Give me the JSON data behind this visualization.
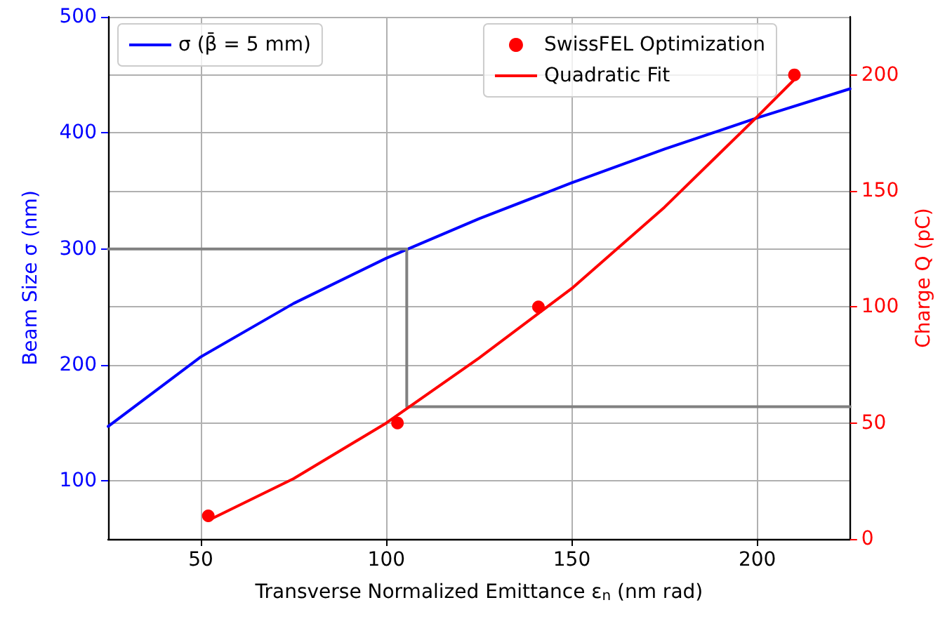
{
  "chart_data": {
    "type": "line",
    "xlabel": "Transverse Normalized Emittance ε$_{n}$ (nm rad)",
    "ylabel": "Beam Size σ (nm)",
    "y2label": "Charge Q (pC)",
    "xlim": [
      25,
      225
    ],
    "xticks": [
      50,
      100,
      150,
      200
    ],
    "ylim": [
      50,
      500
    ],
    "yticks": [
      100,
      200,
      300,
      400,
      500
    ],
    "y2lim": [
      0,
      225
    ],
    "y2ticks": [
      0,
      50,
      100,
      150,
      200
    ],
    "grid": true,
    "legend": "top right",
    "series": [
      {
        "name": "σ (β̄ = 5 mm)",
        "color": "#0000ff",
        "x": [
          25,
          50,
          75,
          100,
          125,
          150,
          175,
          200,
          225
        ],
        "values": [
          147,
          207,
          253,
          292,
          326,
          357,
          386,
          413,
          438
        ]
      },
      {
        "color": "#808080",
        "x": [
          25,
          105.5,
          105.5,
          225
        ],
        "values": [
          300,
          300,
          164,
          164
        ]
      },
      {
        "name": "SwissFEL Optimization",
        "type": "scatter",
        "marker": "circle",
        "axis": "y2",
        "color": "#ff0000",
        "x": [
          52,
          103,
          141,
          210
        ],
        "values": [
          10,
          50,
          100,
          200
        ]
      },
      {
        "name": "Quadratic Fit",
        "axis": "y2",
        "color": "#ff0000",
        "x": [
          52,
          75,
          100,
          125,
          150,
          175,
          200,
          210
        ],
        "values": [
          8,
          26,
          50,
          78,
          108,
          143,
          182,
          198
        ]
      }
    ]
  }
}
